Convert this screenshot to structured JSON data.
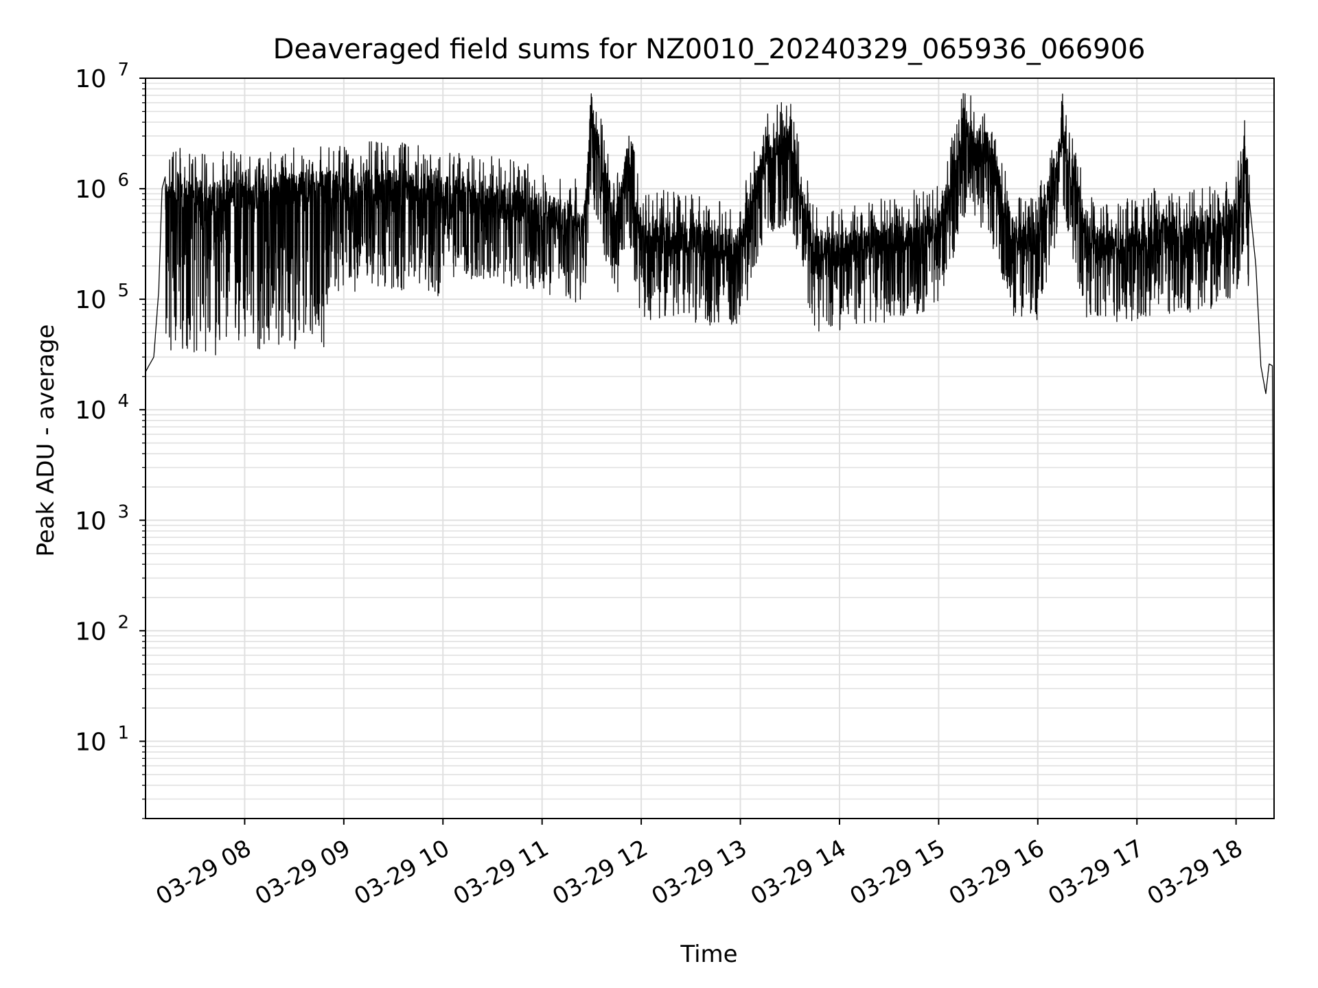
{
  "chart_data": {
    "type": "line",
    "title": "Deaveraged field sums for NZ0010_20240329_065936_066906",
    "xlabel": "Time",
    "ylabel": "Peak ADU - average",
    "yscale": "log",
    "ylim": [
      2,
      10000000
    ],
    "xlim": [
      "2024-03-29 07:00",
      "2024-03-29 18:23"
    ],
    "grid": true,
    "line_color": "#000000",
    "grid_color": "#e0e0e0",
    "x_ticks": [
      {
        "t": "2024-03-29 08:00",
        "label": "03-29 08"
      },
      {
        "t": "2024-03-29 09:00",
        "label": "03-29 09"
      },
      {
        "t": "2024-03-29 10:00",
        "label": "03-29 10"
      },
      {
        "t": "2024-03-29 11:00",
        "label": "03-29 11"
      },
      {
        "t": "2024-03-29 12:00",
        "label": "03-29 12"
      },
      {
        "t": "2024-03-29 13:00",
        "label": "03-29 13"
      },
      {
        "t": "2024-03-29 14:00",
        "label": "03-29 14"
      },
      {
        "t": "2024-03-29 15:00",
        "label": "03-29 15"
      },
      {
        "t": "2024-03-29 16:00",
        "label": "03-29 16"
      },
      {
        "t": "2024-03-29 17:00",
        "label": "03-29 17"
      },
      {
        "t": "2024-03-29 18:00",
        "label": "03-29 18"
      }
    ],
    "y_ticks": [
      {
        "value": 10,
        "base": "10",
        "exp": "1"
      },
      {
        "value": 100,
        "base": "10",
        "exp": "2"
      },
      {
        "value": 1000,
        "base": "10",
        "exp": "3"
      },
      {
        "value": 10000,
        "base": "10",
        "exp": "4"
      },
      {
        "value": 100000,
        "base": "10",
        "exp": "5"
      },
      {
        "value": 1000000,
        "base": "10",
        "exp": "6"
      },
      {
        "value": 10000000,
        "base": "10",
        "exp": "7"
      }
    ],
    "series": [
      {
        "x": [
          "2024-03-29 07:00",
          "2024-03-29 07:02",
          "2024-03-29 07:05",
          "2024-03-29 07:08",
          "2024-03-29 07:10",
          "2024-03-29 07:12",
          "2024-03-29 07:15",
          "2024-03-29 07:20",
          "2024-03-29 07:25",
          "2024-03-29 07:30",
          "2024-03-29 07:35",
          "2024-03-29 07:40",
          "2024-03-29 07:45",
          "2024-03-29 07:50",
          "2024-03-29 08:00",
          "2024-03-29 08:15",
          "2024-03-29 08:30",
          "2024-03-29 08:45",
          "2024-03-29 09:00",
          "2024-03-29 09:15",
          "2024-03-29 09:30",
          "2024-03-29 09:45",
          "2024-03-29 10:00",
          "2024-03-29 10:15",
          "2024-03-29 10:30",
          "2024-03-29 10:45",
          "2024-03-29 11:00",
          "2024-03-29 11:15",
          "2024-03-29 11:25",
          "2024-03-29 11:30",
          "2024-03-29 11:45",
          "2024-03-29 11:52",
          "2024-03-29 12:00",
          "2024-03-29 12:15",
          "2024-03-29 12:30",
          "2024-03-29 12:45",
          "2024-03-29 13:00",
          "2024-03-29 13:15",
          "2024-03-29 13:30",
          "2024-03-29 13:45",
          "2024-03-29 14:00",
          "2024-03-29 14:15",
          "2024-03-29 14:30",
          "2024-03-29 14:45",
          "2024-03-29 15:00",
          "2024-03-29 15:15",
          "2024-03-29 15:30",
          "2024-03-29 15:45",
          "2024-03-29 16:00",
          "2024-03-29 16:15",
          "2024-03-29 16:30",
          "2024-03-29 16:45",
          "2024-03-29 17:00",
          "2024-03-29 17:15",
          "2024-03-29 17:30",
          "2024-03-29 17:45",
          "2024-03-29 18:00",
          "2024-03-29 18:05",
          "2024-03-29 18:08",
          "2024-03-29 18:12",
          "2024-03-29 18:15",
          "2024-03-29 18:18",
          "2024-03-29 18:20",
          "2024-03-29 18:22",
          "2024-03-29 18:23"
        ],
        "y": [
          22000,
          25000,
          30000,
          120000,
          1000000,
          1300000,
          1100000,
          1500000,
          1200000,
          1300000,
          1200000,
          1100000,
          1200000,
          1250000,
          1250000,
          1300000,
          1400000,
          1450000,
          1450000,
          1500000,
          1500000,
          1400000,
          1300000,
          1200000,
          1100000,
          1000000,
          900000,
          800000,
          600000,
          5700000,
          700000,
          2700000,
          500000,
          550000,
          500000,
          450000,
          450000,
          3000000,
          3700000,
          400000,
          400000,
          450000,
          500000,
          550000,
          600000,
          4300000,
          3200000,
          550000,
          500000,
          4100000,
          500000,
          450000,
          500000,
          600000,
          550000,
          600000,
          800000,
          2600000,
          800000,
          200000,
          25000,
          14000,
          26000,
          25000,
          4
        ]
      }
    ]
  }
}
